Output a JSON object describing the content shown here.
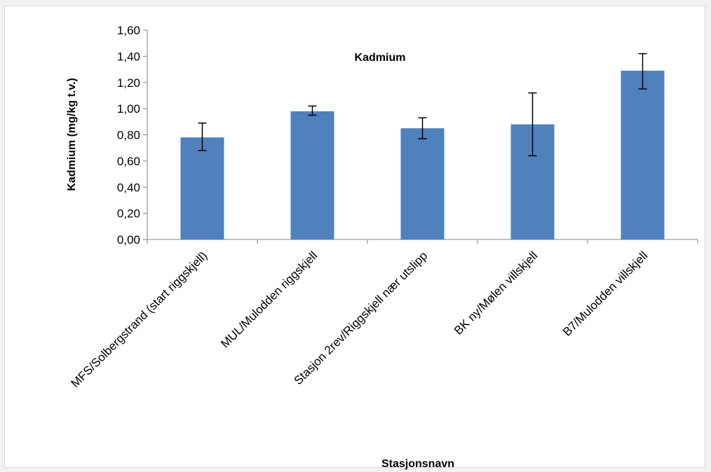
{
  "chart_data": {
    "type": "bar",
    "title": "Kadmium",
    "xlabel": "Stasjonsnavn",
    "ylabel": "Kadmium (mg/kg t.v.)",
    "ylim": [
      0,
      1.6
    ],
    "yticks": [
      "0,00",
      "0,20",
      "0,40",
      "0,60",
      "0,80",
      "1,00",
      "1,20",
      "1,40",
      "1,60"
    ],
    "categories": [
      "MFS/Solbergstrand (start riggskjell)",
      "MUL/Mulodden riggskjell",
      "Stasjon 2rev/Riggskjell nær utslipp",
      "BK ny/Mølen villskjell",
      "B7/Mulodden villskjell"
    ],
    "values": [
      0.78,
      0.98,
      0.85,
      0.88,
      1.29
    ],
    "error_low": [
      0.68,
      0.95,
      0.77,
      0.64,
      1.15
    ],
    "error_high": [
      0.89,
      1.02,
      0.93,
      1.12,
      1.42
    ],
    "grid": false,
    "legend": "none",
    "bar_color": "#4f81bd"
  }
}
